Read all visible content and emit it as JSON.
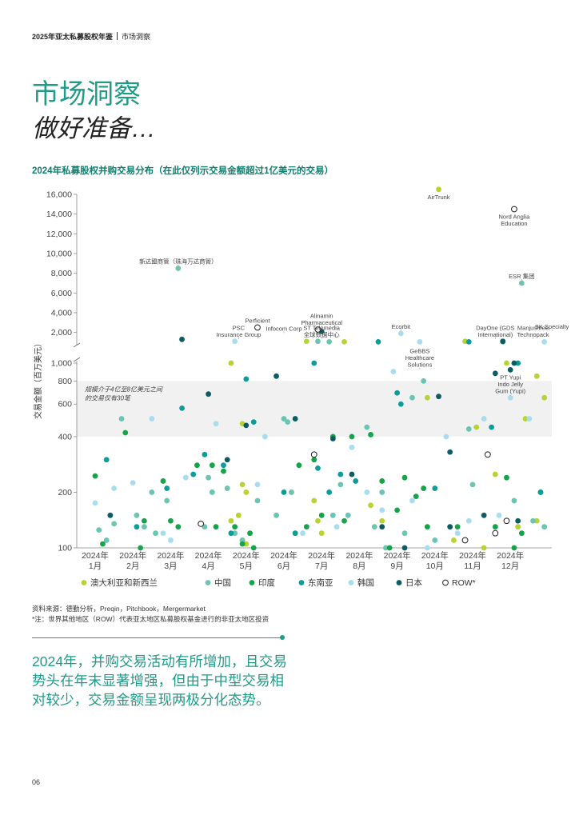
{
  "header": {
    "report": "2025年亚太私募股权年鉴",
    "section": "市场洞察"
  },
  "hero": {
    "title": "市场洞察",
    "subtitle": "做好准备…"
  },
  "notes": {
    "source": "资料来源：德勤分析，Preqin，Pitchbook，Mergermarket",
    "footnote": "*注：世界其他地区（ROW）代表亚太地区私募股权基金进行的非亚太地区投资"
  },
  "summary": "2024年，并购交易活动有所增加，且交易势头在年末显著增强，但由于中型交易相对较少，交易金额呈现两极分化态势。",
  "page_number": "06",
  "colors": {
    "anz": "#b7d334",
    "china": "#6cc4b3",
    "india": "#16a34a",
    "sea": "#0d9d99",
    "korea": "#a8ddf0",
    "japan": "#0d5c63",
    "row": "#ffffff",
    "accent": "#1f9b87",
    "band": "#f1f1f1"
  },
  "chart_data": {
    "type": "scatter",
    "title": "2024年私募股权并购交易分布（在此仅列示交易金额超过1亿美元的交易）",
    "ylabel": "交易金额（百万美元）",
    "y_scale": "log-broken",
    "ylim": [
      100,
      16000
    ],
    "y_ticks_lower": [
      "100",
      "200",
      "400",
      "600",
      "800",
      "1,000"
    ],
    "y_ticks_upper": [
      "2,000",
      "4,000",
      "6,000",
      "8,000",
      "10,000",
      "12,000",
      "14,000",
      "16,000"
    ],
    "x_categories": [
      [
        "2024年",
        "1月"
      ],
      [
        "2024年",
        "2月"
      ],
      [
        "2024年",
        "3月"
      ],
      [
        "2024年",
        "4月"
      ],
      [
        "2024年",
        "5月"
      ],
      [
        "2024年",
        "6月"
      ],
      [
        "2024年",
        "7月"
      ],
      [
        "2024年",
        "8月"
      ],
      [
        "2024年",
        "9月"
      ],
      [
        "2024年",
        "10月"
      ],
      [
        "2024年",
        "11月"
      ],
      [
        "2024年",
        "12月"
      ]
    ],
    "band": {
      "low": 400,
      "high": 800,
      "label": [
        "规模介于4亿至8亿美元之间",
        "的交易仅有30笔"
      ]
    },
    "grid": false,
    "legend_position": "bottom",
    "series": [
      {
        "key": "anz",
        "name": "澳大利亚和新西兰",
        "points": [
          [
            4.6,
            1000
          ],
          [
            4.9,
            470
          ],
          [
            4.9,
            220
          ],
          [
            5.0,
            200
          ],
          [
            4.8,
            150
          ],
          [
            4.6,
            140
          ],
          [
            4.7,
            120
          ],
          [
            4.9,
            110
          ],
          [
            5.0,
            105
          ],
          [
            6.2,
            200
          ],
          [
            6.6,
            1100
          ],
          [
            6.8,
            180
          ],
          [
            6.9,
            140
          ],
          [
            7.0,
            120
          ],
          [
            7.6,
            1050
          ],
          [
            8.3,
            170
          ],
          [
            8.6,
            140
          ],
          [
            9.8,
            650
          ],
          [
            10.1,
            16500
          ],
          [
            10.5,
            110
          ],
          [
            10.8,
            1100
          ],
          [
            11.1,
            450
          ],
          [
            11.3,
            100
          ],
          [
            11.6,
            250
          ],
          [
            11.9,
            1000
          ],
          [
            12.2,
            130
          ],
          [
            12.4,
            500
          ],
          [
            12.7,
            850
          ],
          [
            12.9,
            650
          ],
          [
            12.7,
            140
          ]
        ]
      },
      {
        "key": "china",
        "name": "中国",
        "points": [
          [
            1.1,
            125
          ],
          [
            1.3,
            110
          ],
          [
            1.5,
            135
          ],
          [
            1.7,
            500
          ],
          [
            2.1,
            150
          ],
          [
            2.3,
            130
          ],
          [
            2.5,
            200
          ],
          [
            2.6,
            120
          ],
          [
            2.9,
            180
          ],
          [
            3.2,
            8500
          ],
          [
            3.9,
            130
          ],
          [
            4.0,
            240
          ],
          [
            4.1,
            200
          ],
          [
            4.5,
            210
          ],
          [
            4.7,
            120
          ],
          [
            4.9,
            110
          ],
          [
            5.3,
            180
          ],
          [
            5.8,
            150
          ],
          [
            6.0,
            500
          ],
          [
            6.1,
            480
          ],
          [
            6.2,
            200
          ],
          [
            6.3,
            120
          ],
          [
            6.9,
            1100
          ],
          [
            7.2,
            1050
          ],
          [
            7.3,
            150
          ],
          [
            7.5,
            220
          ],
          [
            7.7,
            150
          ],
          [
            8.2,
            450
          ],
          [
            8.4,
            130
          ],
          [
            8.6,
            200
          ],
          [
            8.7,
            100
          ],
          [
            9.2,
            120
          ],
          [
            9.4,
            650
          ],
          [
            9.7,
            800
          ],
          [
            10.0,
            110
          ],
          [
            10.9,
            440
          ],
          [
            11.0,
            220
          ],
          [
            11.8,
            1050
          ],
          [
            11.9,
            140
          ],
          [
            12.1,
            180
          ],
          [
            12.3,
            7000
          ],
          [
            12.6,
            140
          ],
          [
            12.9,
            130
          ],
          [
            13.3,
            135
          ],
          [
            13.5,
            1050
          ]
        ]
      },
      {
        "key": "india",
        "name": "印度",
        "points": [
          [
            1.0,
            245
          ],
          [
            1.2,
            105
          ],
          [
            1.8,
            420
          ],
          [
            2.2,
            100
          ],
          [
            2.3,
            140
          ],
          [
            2.8,
            230
          ],
          [
            3.0,
            140
          ],
          [
            3.2,
            130
          ],
          [
            3.7,
            280
          ],
          [
            4.1,
            280
          ],
          [
            4.2,
            130
          ],
          [
            4.4,
            260
          ],
          [
            4.7,
            130
          ],
          [
            4.9,
            105
          ],
          [
            5.1,
            120
          ],
          [
            5.2,
            100
          ],
          [
            6.4,
            280
          ],
          [
            6.6,
            130
          ],
          [
            6.8,
            300
          ],
          [
            7.0,
            150
          ],
          [
            7.3,
            400
          ],
          [
            7.6,
            140
          ],
          [
            7.8,
            400
          ],
          [
            8.3,
            410
          ],
          [
            8.6,
            230
          ],
          [
            8.8,
            100
          ],
          [
            9.0,
            160
          ],
          [
            9.2,
            240
          ],
          [
            9.5,
            190
          ],
          [
            9.7,
            210
          ],
          [
            9.8,
            130
          ],
          [
            10.6,
            130
          ],
          [
            11.6,
            130
          ],
          [
            11.9,
            240
          ],
          [
            12.1,
            100
          ],
          [
            12.3,
            120
          ],
          [
            12.8,
            200
          ]
        ]
      },
      {
        "key": "sea",
        "name": "东南亚",
        "points": [
          [
            1.3,
            300
          ],
          [
            2.1,
            130
          ],
          [
            2.9,
            210
          ],
          [
            3.3,
            570
          ],
          [
            3.6,
            250
          ],
          [
            3.9,
            320
          ],
          [
            4.4,
            280
          ],
          [
            4.6,
            120
          ],
          [
            5.0,
            820
          ],
          [
            5.2,
            480
          ],
          [
            6.0,
            200
          ],
          [
            6.3,
            120
          ],
          [
            6.8,
            1000
          ],
          [
            6.9,
            270
          ],
          [
            7.2,
            200
          ],
          [
            7.5,
            250
          ],
          [
            7.9,
            230
          ],
          [
            8.5,
            1050
          ],
          [
            9.0,
            690
          ],
          [
            9.1,
            600
          ],
          [
            10.0,
            210
          ],
          [
            10.9,
            1050
          ],
          [
            11.5,
            450
          ],
          [
            11.8,
            1100
          ],
          [
            12.2,
            1000
          ],
          [
            12.8,
            200
          ],
          [
            13.2,
            440
          ]
        ]
      },
      {
        "key": "korea",
        "name": "韩国",
        "points": [
          [
            1.0,
            175
          ],
          [
            1.5,
            210
          ],
          [
            2.0,
            225
          ],
          [
            2.5,
            500
          ],
          [
            2.8,
            120
          ],
          [
            3.0,
            110
          ],
          [
            3.4,
            240
          ],
          [
            4.2,
            470
          ],
          [
            4.7,
            1100
          ],
          [
            5.3,
            220
          ],
          [
            5.5,
            400
          ],
          [
            6.5,
            120
          ],
          [
            7.4,
            130
          ],
          [
            7.8,
            350
          ],
          [
            8.2,
            200
          ],
          [
            8.6,
            160
          ],
          [
            8.9,
            900
          ],
          [
            9.1,
            1900
          ],
          [
            9.4,
            180
          ],
          [
            9.6,
            1050
          ],
          [
            9.8,
            100
          ],
          [
            10.3,
            400
          ],
          [
            10.6,
            120
          ],
          [
            10.9,
            140
          ],
          [
            11.3,
            500
          ],
          [
            11.7,
            150
          ],
          [
            12.0,
            650
          ],
          [
            12.5,
            500
          ],
          [
            12.9,
            1050
          ],
          [
            13.1,
            1900
          ],
          [
            13.3,
            230
          ]
        ]
      },
      {
        "key": "japan",
        "name": "日本",
        "points": [
          [
            1.4,
            150
          ],
          [
            3.3,
            1300
          ],
          [
            4.0,
            680
          ],
          [
            4.5,
            300
          ],
          [
            5.0,
            460
          ],
          [
            5.8,
            850
          ],
          [
            6.3,
            500
          ],
          [
            7.0,
            2100
          ],
          [
            7.3,
            390
          ],
          [
            7.8,
            250
          ],
          [
            8.6,
            130
          ],
          [
            9.2,
            100
          ],
          [
            10.1,
            660
          ],
          [
            10.4,
            330
          ],
          [
            10.4,
            130
          ],
          [
            11.3,
            150
          ],
          [
            11.6,
            880
          ],
          [
            11.8,
            1100
          ],
          [
            12.0,
            920
          ],
          [
            12.1,
            1000
          ],
          [
            12.2,
            140
          ]
        ]
      },
      {
        "key": "row",
        "name": "ROW*",
        "points": [
          [
            3.8,
            135
          ],
          [
            5.3,
            2500
          ],
          [
            6.8,
            320
          ],
          [
            6.9,
            2300
          ],
          [
            10.8,
            110
          ],
          [
            11.4,
            320
          ],
          [
            11.6,
            120
          ],
          [
            11.9,
            140
          ],
          [
            12.1,
            14500
          ]
        ]
      }
    ],
    "annotations": [
      {
        "text": [
          "新达盟商管（珠海万达商管）"
        ],
        "x": 3.2,
        "y": 8500,
        "anchor": "middle",
        "pos": "above"
      },
      {
        "text": [
          "Perficient"
        ],
        "x": 5.3,
        "y": 2500,
        "anchor": "middle",
        "pos": "above"
      },
      {
        "text": [
          "PSC",
          "Insurance Group"
        ],
        "x": 4.8,
        "y": 1100,
        "anchor": "middle",
        "pos": "above"
      },
      {
        "text": [
          "Infocom Corp"
        ],
        "x": 6.0,
        "y": 1700,
        "anchor": "middle",
        "pos": "above"
      },
      {
        "text": [
          "ST Telemedia",
          "全球数据中心"
        ],
        "x": 7.0,
        "y": 1100,
        "anchor": "middle",
        "pos": "above"
      },
      {
        "text": [
          "Alinamin",
          "Pharmaceutical"
        ],
        "x": 7.0,
        "y": 2300,
        "anchor": "middle",
        "pos": "above"
      },
      {
        "text": [
          "Ecorbit"
        ],
        "x": 9.1,
        "y": 1900,
        "anchor": "middle",
        "pos": "above"
      },
      {
        "text": [
          "GeBBS",
          "Healthcare",
          "Solutions"
        ],
        "x": 9.6,
        "y": 900,
        "anchor": "middle",
        "pos": "above"
      },
      {
        "text": [
          "AirTrunk"
        ],
        "x": 10.1,
        "y": 16500,
        "anchor": "middle",
        "pos": "below"
      },
      {
        "text": [
          "Nord Anglia",
          "Education"
        ],
        "x": 12.1,
        "y": 14500,
        "anchor": "middle",
        "pos": "below"
      },
      {
        "text": [
          "ESR 集团"
        ],
        "x": 12.3,
        "y": 7000,
        "anchor": "middle",
        "pos": "above"
      },
      {
        "text": [
          "DayOne (GDS",
          "International)"
        ],
        "x": 11.6,
        "y": 1100,
        "anchor": "middle",
        "pos": "above"
      },
      {
        "text": [
          "PT Yupi",
          "Indo Jelly",
          "Gum (Yupi)"
        ],
        "x": 12.0,
        "y": 920,
        "anchor": "middle",
        "pos": "below"
      },
      {
        "text": [
          "Manjushree",
          "Technopack"
        ],
        "x": 12.6,
        "y": 1100,
        "anchor": "middle",
        "pos": "above"
      },
      {
        "text": [
          "SK Specialty"
        ],
        "x": 13.1,
        "y": 1900,
        "anchor": "middle",
        "pos": "above"
      }
    ]
  }
}
